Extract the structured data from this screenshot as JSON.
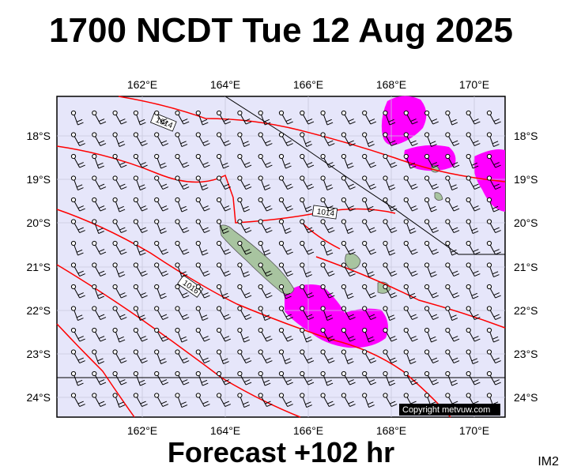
{
  "title": "1700 NCDT Tue 12 Aug 2025",
  "subtitle": "Forecast +102 hr",
  "image_tag": "IM2",
  "copyright": "Copyright metvuw.com",
  "lon_ticks": [
    "162°E",
    "164°E",
    "166°E",
    "168°E",
    "170°E"
  ],
  "lat_ticks": [
    "18°S",
    "19°S",
    "20°S",
    "21°S",
    "22°S",
    "23°S",
    "24°S"
  ],
  "isobar_labels": [
    "1014",
    "1014",
    "1016"
  ],
  "colors": {
    "map_background": "#e6e6fa",
    "isobar": "#ff0000",
    "precipitation": "#ff00ff",
    "land": "#a8c4a0",
    "wind_barb": "#000000"
  }
}
